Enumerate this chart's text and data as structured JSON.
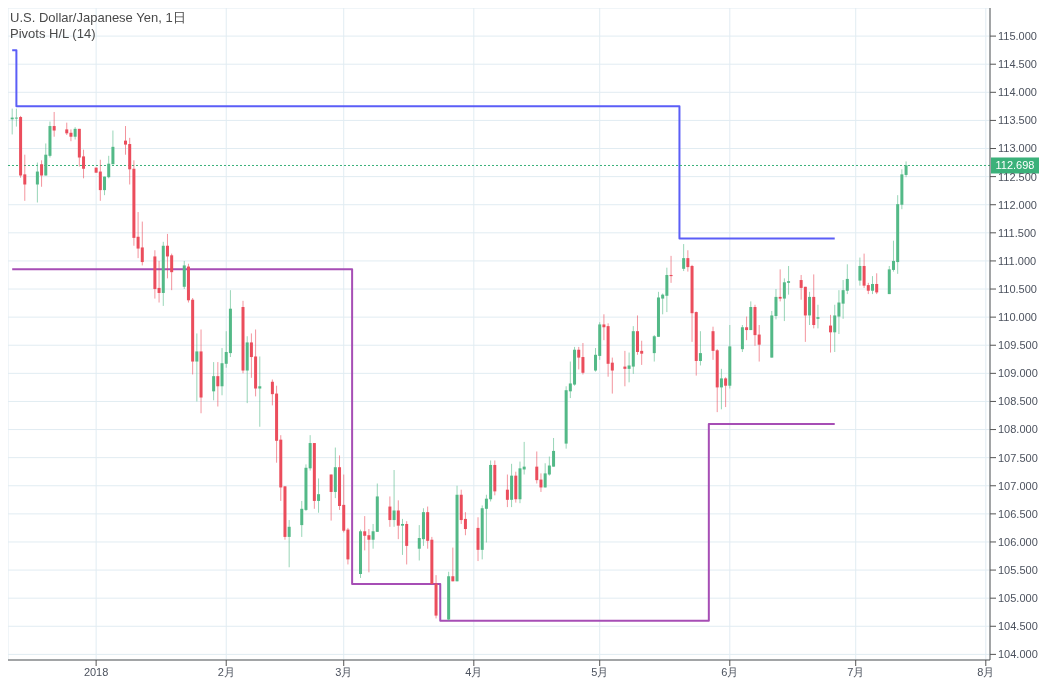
{
  "chart_data": {
    "type": "candlestick",
    "title": "U.S. Dollar/Japanese Yen, 1日",
    "subtitle": "Pivots H/L (14)",
    "x": [
      "2017-12-12",
      "2017-12-13",
      "2017-12-14",
      "2017-12-15",
      "2017-12-18",
      "2017-12-19",
      "2017-12-20",
      "2017-12-21",
      "2017-12-22",
      "2017-12-25",
      "2017-12-26",
      "2017-12-27",
      "2017-12-28",
      "2017-12-29",
      "2018-01-01",
      "2018-01-02",
      "2018-01-03",
      "2018-01-04",
      "2018-01-05",
      "2018-01-08",
      "2018-01-09",
      "2018-01-10",
      "2018-01-11",
      "2018-01-12",
      "2018-01-15",
      "2018-01-16",
      "2018-01-17",
      "2018-01-18",
      "2018-01-19",
      "2018-01-22",
      "2018-01-23",
      "2018-01-24",
      "2018-01-25",
      "2018-01-26",
      "2018-01-29",
      "2018-01-30",
      "2018-01-31",
      "2018-02-01",
      "2018-02-02",
      "2018-02-05",
      "2018-02-06",
      "2018-02-07",
      "2018-02-08",
      "2018-02-09",
      "2018-02-12",
      "2018-02-13",
      "2018-02-14",
      "2018-02-15",
      "2018-02-16",
      "2018-02-19",
      "2018-02-20",
      "2018-02-21",
      "2018-02-22",
      "2018-02-23",
      "2018-02-26",
      "2018-02-27",
      "2018-02-28",
      "2018-03-01",
      "2018-03-02",
      "2018-03-05",
      "2018-03-06",
      "2018-03-07",
      "2018-03-08",
      "2018-03-09",
      "2018-03-12",
      "2018-03-13",
      "2018-03-14",
      "2018-03-15",
      "2018-03-16",
      "2018-03-19",
      "2018-03-20",
      "2018-03-21",
      "2018-03-22",
      "2018-03-23",
      "2018-03-26",
      "2018-03-27",
      "2018-03-28",
      "2018-03-29",
      "2018-03-30",
      "2018-04-02",
      "2018-04-03",
      "2018-04-04",
      "2018-04-05",
      "2018-04-06",
      "2018-04-09",
      "2018-04-10",
      "2018-04-11",
      "2018-04-12",
      "2018-04-13",
      "2018-04-16",
      "2018-04-17",
      "2018-04-18",
      "2018-04-19",
      "2018-04-20",
      "2018-04-23",
      "2018-04-24",
      "2018-04-25",
      "2018-04-26",
      "2018-04-27",
      "2018-04-30",
      "2018-05-01",
      "2018-05-02",
      "2018-05-03",
      "2018-05-04",
      "2018-05-07",
      "2018-05-08",
      "2018-05-09",
      "2018-05-10",
      "2018-05-11",
      "2018-05-14",
      "2018-05-15",
      "2018-05-16",
      "2018-05-17",
      "2018-05-18",
      "2018-05-21",
      "2018-05-22",
      "2018-05-23",
      "2018-05-24",
      "2018-05-25",
      "2018-05-28",
      "2018-05-29",
      "2018-05-30",
      "2018-05-31",
      "2018-06-01",
      "2018-06-04",
      "2018-06-05",
      "2018-06-06",
      "2018-06-07",
      "2018-06-08",
      "2018-06-11",
      "2018-06-12",
      "2018-06-13",
      "2018-06-14",
      "2018-06-15",
      "2018-06-18",
      "2018-06-19",
      "2018-06-20",
      "2018-06-21",
      "2018-06-22",
      "2018-06-25",
      "2018-06-26",
      "2018-06-27",
      "2018-06-28",
      "2018-06-29",
      "2018-07-02",
      "2018-07-03",
      "2018-07-04",
      "2018-07-05",
      "2018-07-06",
      "2018-07-09",
      "2018-07-10",
      "2018-07-11",
      "2018-07-12",
      "2018-07-13"
    ],
    "ohlc": [
      [
        113.52,
        113.71,
        113.25,
        113.55
      ],
      [
        113.55,
        113.71,
        113.39,
        113.55
      ],
      [
        113.56,
        113.58,
        112.48,
        112.52
      ],
      [
        112.54,
        112.89,
        112.07,
        112.36
      ],
      [
        112.36,
        112.75,
        112.04,
        112.59
      ],
      [
        112.72,
        112.79,
        112.32,
        112.52
      ],
      [
        112.52,
        113.09,
        112.52,
        112.89
      ],
      [
        112.87,
        113.48,
        112.84,
        113.4
      ],
      [
        113.4,
        113.65,
        113.21,
        113.32
      ],
      [
        113.34,
        113.46,
        113.24,
        113.27
      ],
      [
        113.28,
        113.34,
        113.13,
        113.21
      ],
      [
        113.21,
        113.38,
        113.16,
        113.35
      ],
      [
        113.35,
        113.35,
        112.68,
        112.84
      ],
      [
        112.86,
        112.98,
        112.47,
        112.64
      ],
      [
        112.66,
        112.66,
        112.57,
        112.57
      ],
      [
        112.59,
        112.8,
        112.07,
        112.26
      ],
      [
        112.26,
        112.5,
        112.17,
        112.5
      ],
      [
        112.49,
        112.87,
        112.47,
        112.73
      ],
      [
        112.72,
        113.32,
        112.72,
        113.03
      ],
      [
        113.14,
        113.4,
        112.89,
        113.07
      ],
      [
        113.08,
        113.19,
        112.36,
        112.63
      ],
      [
        112.64,
        112.79,
        111.27,
        111.41
      ],
      [
        111.43,
        111.87,
        111.05,
        111.22
      ],
      [
        111.24,
        111.7,
        110.92,
        110.98
      ],
      [
        111.08,
        111.19,
        110.33,
        110.5
      ],
      [
        110.52,
        111.0,
        110.26,
        110.43
      ],
      [
        110.43,
        111.34,
        110.2,
        111.27
      ],
      [
        111.27,
        111.48,
        110.69,
        111.08
      ],
      [
        111.1,
        111.13,
        110.48,
        110.8
      ],
      [
        110.54,
        111.0,
        110.5,
        110.92
      ],
      [
        110.9,
        110.95,
        110.26,
        110.3
      ],
      [
        110.31,
        110.34,
        108.98,
        109.21
      ],
      [
        109.21,
        109.71,
        108.5,
        109.39
      ],
      [
        109.39,
        109.78,
        108.29,
        108.57
      ],
      [
        108.68,
        109.2,
        108.52,
        108.95
      ],
      [
        108.95,
        109.2,
        108.41,
        108.77
      ],
      [
        108.77,
        109.45,
        108.61,
        109.18
      ],
      [
        109.17,
        109.75,
        109.1,
        109.38
      ],
      [
        109.36,
        110.48,
        109.29,
        110.15
      ],
      [
        110.18,
        110.29,
        109.0,
        109.05
      ],
      [
        109.05,
        109.66,
        108.47,
        109.55
      ],
      [
        109.55,
        109.71,
        108.92,
        109.29
      ],
      [
        109.3,
        109.78,
        108.59,
        108.73
      ],
      [
        108.73,
        109.3,
        108.05,
        108.77
      ],
      [
        108.85,
        108.89,
        108.43,
        108.63
      ],
      [
        108.64,
        108.78,
        107.41,
        107.8
      ],
      [
        107.82,
        107.9,
        106.73,
        106.97
      ],
      [
        106.99,
        106.99,
        106.04,
        106.09
      ],
      [
        106.09,
        106.39,
        105.55,
        106.27
      ],
      [
        106.3,
        106.73,
        106.09,
        106.59
      ],
      [
        106.57,
        107.38,
        106.55,
        107.32
      ],
      [
        107.31,
        107.9,
        107.27,
        107.76
      ],
      [
        107.76,
        107.76,
        106.59,
        106.73
      ],
      [
        106.73,
        107.13,
        106.52,
        106.85
      ],
      [
        107.2,
        107.2,
        106.38,
        106.89
      ],
      [
        106.89,
        107.68,
        106.78,
        107.33
      ],
      [
        107.33,
        107.54,
        106.57,
        106.64
      ],
      [
        106.66,
        107.2,
        106.17,
        106.2
      ],
      [
        106.22,
        106.25,
        105.6,
        105.69
      ],
      [
        105.43,
        106.22,
        105.36,
        106.19
      ],
      [
        106.19,
        106.46,
        105.85,
        106.11
      ],
      [
        106.12,
        106.23,
        105.46,
        106.04
      ],
      [
        106.04,
        106.32,
        105.88,
        106.19
      ],
      [
        106.18,
        107.04,
        106.18,
        106.81
      ],
      [
        106.63,
        106.81,
        106.27,
        106.39
      ],
      [
        106.39,
        107.28,
        106.27,
        106.56
      ],
      [
        106.56,
        106.74,
        106.05,
        106.29
      ],
      [
        106.29,
        106.41,
        105.77,
        106.32
      ],
      [
        106.32,
        106.37,
        105.6,
        105.93
      ],
      [
        105.88,
        106.3,
        105.67,
        106.07
      ],
      [
        106.05,
        106.6,
        105.93,
        106.53
      ],
      [
        106.53,
        106.63,
        105.88,
        106.02
      ],
      [
        106.04,
        106.09,
        105.25,
        105.25
      ],
      [
        105.26,
        105.41,
        104.64,
        104.69
      ],
      [
        104.62,
        105.47,
        104.6,
        105.39
      ],
      [
        105.39,
        105.9,
        105.3,
        105.3
      ],
      [
        105.3,
        107.0,
        105.3,
        106.84
      ],
      [
        106.84,
        106.93,
        106.32,
        106.39
      ],
      [
        106.41,
        106.53,
        106.12,
        106.23
      ],
      [
        106.25,
        106.44,
        105.66,
        105.86
      ],
      [
        105.86,
        106.65,
        105.69,
        106.6
      ],
      [
        106.59,
        106.84,
        105.99,
        106.77
      ],
      [
        106.76,
        107.45,
        106.72,
        107.37
      ],
      [
        107.37,
        107.45,
        106.83,
        106.9
      ],
      [
        106.93,
        107.2,
        106.62,
        106.75
      ],
      [
        106.75,
        107.39,
        106.62,
        107.18
      ],
      [
        107.18,
        107.25,
        106.7,
        106.76
      ],
      [
        106.76,
        107.43,
        106.69,
        107.31
      ],
      [
        107.29,
        107.78,
        107.2,
        107.34
      ],
      [
        107.34,
        107.61,
        107.04,
        107.1
      ],
      [
        107.11,
        107.22,
        106.89,
        106.97
      ],
      [
        106.97,
        107.4,
        106.97,
        107.22
      ],
      [
        107.2,
        107.52,
        107.18,
        107.36
      ],
      [
        107.34,
        107.85,
        107.34,
        107.62
      ],
      [
        107.75,
        108.77,
        107.66,
        108.7
      ],
      [
        108.68,
        109.21,
        108.56,
        108.82
      ],
      [
        108.8,
        109.47,
        108.78,
        109.42
      ],
      [
        109.42,
        109.47,
        109.07,
        109.28
      ],
      [
        109.29,
        109.54,
        108.98,
        109.01
      ],
      [
        109.05,
        109.45,
        109.03,
        109.33
      ],
      [
        109.31,
        109.91,
        109.24,
        109.87
      ],
      [
        109.87,
        110.05,
        109.59,
        109.82
      ],
      [
        109.84,
        109.89,
        108.94,
        109.17
      ],
      [
        109.19,
        109.28,
        108.64,
        109.05
      ],
      [
        109.12,
        109.4,
        108.77,
        109.08
      ],
      [
        109.08,
        109.37,
        108.84,
        109.14
      ],
      [
        109.12,
        109.84,
        108.99,
        109.75
      ],
      [
        109.75,
        110.03,
        109.33,
        109.38
      ],
      [
        109.4,
        109.58,
        109.15,
        109.35
      ],
      [
        109.36,
        109.68,
        109.21,
        109.66
      ],
      [
        109.65,
        110.45,
        109.65,
        110.35
      ],
      [
        110.33,
        110.42,
        110.05,
        110.4
      ],
      [
        110.38,
        110.88,
        110.09,
        110.75
      ],
      [
        110.75,
        111.09,
        110.61,
        110.73
      ],
      [
        110.86,
        111.3,
        110.82,
        111.05
      ],
      [
        111.05,
        111.19,
        110.81,
        110.89
      ],
      [
        110.91,
        110.93,
        109.56,
        110.07
      ],
      [
        110.09,
        110.1,
        108.96,
        109.22
      ],
      [
        109.22,
        109.75,
        109.14,
        109.36
      ],
      [
        109.75,
        109.83,
        109.24,
        109.4
      ],
      [
        109.41,
        109.43,
        108.31,
        108.75
      ],
      [
        108.75,
        109.08,
        108.36,
        108.91
      ],
      [
        108.91,
        108.93,
        108.4,
        108.78
      ],
      [
        108.78,
        109.86,
        108.73,
        109.48
      ],
      [
        109.43,
        109.86,
        109.38,
        109.82
      ],
      [
        109.82,
        110.01,
        109.59,
        109.77
      ],
      [
        109.77,
        110.28,
        109.77,
        110.18
      ],
      [
        110.18,
        110.22,
        109.49,
        109.68
      ],
      [
        109.69,
        109.86,
        109.21,
        109.51
      ],
      [
        109.28,
        110.11,
        109.28,
        110.03
      ],
      [
        110.02,
        110.5,
        109.96,
        110.36
      ],
      [
        110.36,
        110.85,
        110.28,
        110.33
      ],
      [
        110.33,
        110.69,
        109.93,
        110.62
      ],
      [
        110.61,
        110.91,
        110.4,
        110.64
      ],
      [
        110.66,
        110.75,
        110.31,
        110.52
      ],
      [
        110.54,
        110.54,
        109.56,
        110.03
      ],
      [
        110.03,
        110.45,
        109.86,
        110.36
      ],
      [
        110.36,
        110.76,
        109.8,
        109.86
      ],
      [
        109.97,
        110.22,
        109.8,
        110.0
      ],
      [
        109.85,
        110.04,
        109.37,
        109.73
      ],
      [
        109.73,
        110.22,
        109.38,
        110.03
      ],
      [
        110.01,
        110.48,
        109.7,
        110.26
      ],
      [
        110.24,
        110.66,
        109.97,
        110.48
      ],
      [
        110.47,
        110.94,
        110.41,
        110.68
      ],
      [
        110.65,
        111.06,
        110.56,
        110.91
      ],
      [
        110.91,
        111.13,
        110.52,
        110.56
      ],
      [
        110.57,
        110.61,
        110.41,
        110.47
      ],
      [
        110.47,
        110.73,
        110.41,
        110.59
      ],
      [
        110.59,
        110.78,
        110.41,
        110.44
      ],
      [
        110.41,
        110.91,
        110.41,
        110.85
      ],
      [
        110.84,
        111.36,
        110.81,
        111.0
      ],
      [
        110.98,
        112.17,
        110.77,
        112.01
      ],
      [
        112.0,
        112.63,
        111.92,
        112.54
      ],
      [
        112.53,
        112.77,
        112.49,
        112.7
      ]
    ],
    "colors": [
      "#53b987",
      "#53b987",
      "#eb4d5c",
      "#eb4d5c",
      "#53b987",
      "#eb4d5c",
      "#53b987",
      "#53b987",
      "#eb4d5c",
      "#eb4d5c",
      "#eb4d5c",
      "#53b987",
      "#eb4d5c",
      "#eb4d5c",
      "#eb4d5c",
      "#eb4d5c",
      "#53b987",
      "#53b987",
      "#53b987",
      "#eb4d5c",
      "#eb4d5c",
      "#eb4d5c",
      "#eb4d5c",
      "#eb4d5c",
      "#eb4d5c",
      "#eb4d5c",
      "#53b987",
      "#eb4d5c",
      "#eb4d5c",
      "#53b987",
      "#eb4d5c",
      "#eb4d5c",
      "#53b987",
      "#eb4d5c",
      "#53b987",
      "#eb4d5c",
      "#53b987",
      "#53b987",
      "#53b987",
      "#eb4d5c",
      "#53b987",
      "#eb4d5c",
      "#eb4d5c",
      "#53b987",
      "#eb4d5c",
      "#eb4d5c",
      "#eb4d5c",
      "#eb4d5c",
      "#53b987",
      "#53b987",
      "#53b987",
      "#53b987",
      "#eb4d5c",
      "#53b987",
      "#eb4d5c",
      "#53b987",
      "#eb4d5c",
      "#eb4d5c",
      "#eb4d5c",
      "#53b987",
      "#eb4d5c",
      "#eb4d5c",
      "#53b987",
      "#53b987",
      "#eb4d5c",
      "#53b987",
      "#eb4d5c",
      "#53b987",
      "#eb4d5c",
      "#53b987",
      "#53b987",
      "#eb4d5c",
      "#eb4d5c",
      "#eb4d5c",
      "#53b987",
      "#eb4d5c",
      "#53b987",
      "#eb4d5c",
      "#eb4d5c",
      "#eb4d5c",
      "#53b987",
      "#53b987",
      "#53b987",
      "#eb4d5c",
      "#eb4d5c",
      "#53b987",
      "#eb4d5c",
      "#53b987",
      "#53b987",
      "#eb4d5c",
      "#eb4d5c",
      "#53b987",
      "#53b987",
      "#53b987",
      "#53b987",
      "#53b987",
      "#53b987",
      "#eb4d5c",
      "#eb4d5c",
      "#53b987",
      "#53b987",
      "#eb4d5c",
      "#eb4d5c",
      "#eb4d5c",
      "#eb4d5c",
      "#53b987",
      "#53b987",
      "#eb4d5c",
      "#eb4d5c",
      "#53b987",
      "#53b987",
      "#53b987",
      "#53b987",
      "#eb4d5c",
      "#53b987",
      "#eb4d5c",
      "#eb4d5c",
      "#eb4d5c",
      "#53b987",
      "#eb4d5c",
      "#eb4d5c",
      "#53b987",
      "#eb4d5c",
      "#53b987",
      "#53b987",
      "#eb4d5c",
      "#53b987",
      "#eb4d5c",
      "#eb4d5c",
      "#53b987",
      "#53b987",
      "#eb4d5c",
      "#53b987",
      "#53b987",
      "#eb4d5c",
      "#eb4d5c",
      "#53b987",
      "#eb4d5c",
      "#53b987",
      "#eb4d5c",
      "#53b987",
      "#53b987",
      "#53b987",
      "#53b987",
      "#53b987",
      "#eb4d5c",
      "#eb4d5c",
      "#53b987",
      "#eb4d5c",
      "#53b987",
      "#53b987",
      "#53b987",
      "#53b987",
      "#53b987"
    ],
    "series": [
      {
        "type": "step",
        "color": "#5b5ef7",
        "x": [
          "2017-12-12",
          "2017-12-13",
          "2018-05-20",
          "2018-06-26"
        ],
        "values": [
          114.75,
          113.75,
          111.4,
          111.4
        ]
      },
      {
        "type": "step",
        "color": "#a64eb5",
        "x": [
          "2017-12-12",
          "2018-03-03",
          "2018-03-24",
          "2018-05-27",
          "2018-06-26"
        ],
        "values": [
          110.85,
          105.25,
          104.6,
          108.1,
          108.1
        ]
      }
    ],
    "ref_lines": [
      {
        "axis": "y",
        "value": 112.698,
        "label": "112.698",
        "color": "#3bb17a",
        "line_style": "dotted"
      }
    ],
    "xlim": [
      "2017-12-11",
      "2018-08-02"
    ],
    "xticks": [
      {
        "value": "2018-01-01",
        "label": "2018"
      },
      {
        "value": "2018-02-01",
        "label": "2月"
      },
      {
        "value": "2018-03-01",
        "label": "3月"
      },
      {
        "value": "2018-04-01",
        "label": "4月"
      },
      {
        "value": "2018-05-01",
        "label": "5月"
      },
      {
        "value": "2018-06-01",
        "label": "6月"
      },
      {
        "value": "2018-07-01",
        "label": "7月"
      },
      {
        "value": "2018-08-01",
        "label": "8月"
      }
    ],
    "ylim": [
      103.9,
      115.5
    ],
    "yticks": [
      {
        "value": 104,
        "label": "104.000"
      },
      {
        "value": 104.5,
        "label": "104.500"
      },
      {
        "value": 105,
        "label": "105.000"
      },
      {
        "value": 105.5,
        "label": "105.500"
      },
      {
        "value": 106,
        "label": "106.000"
      },
      {
        "value": 106.5,
        "label": "106.500"
      },
      {
        "value": 107,
        "label": "107.000"
      },
      {
        "value": 107.5,
        "label": "107.500"
      },
      {
        "value": 108,
        "label": "108.000"
      },
      {
        "value": 108.5,
        "label": "108.500"
      },
      {
        "value": 109,
        "label": "109.000"
      },
      {
        "value": 109.5,
        "label": "109.500"
      },
      {
        "value": 110,
        "label": "110.000"
      },
      {
        "value": 110.5,
        "label": "110.500"
      },
      {
        "value": 111,
        "label": "111.000"
      },
      {
        "value": 111.5,
        "label": "111.500"
      },
      {
        "value": 112,
        "label": "112.000"
      },
      {
        "value": 112.5,
        "label": "112.500"
      },
      {
        "value": 113,
        "label": "113.000"
      },
      {
        "value": 113.5,
        "label": "113.500"
      },
      {
        "value": 114,
        "label": "114.000"
      },
      {
        "value": 114.5,
        "label": "114.500"
      },
      {
        "value": 115,
        "label": "115.000"
      }
    ],
    "grid": true
  }
}
